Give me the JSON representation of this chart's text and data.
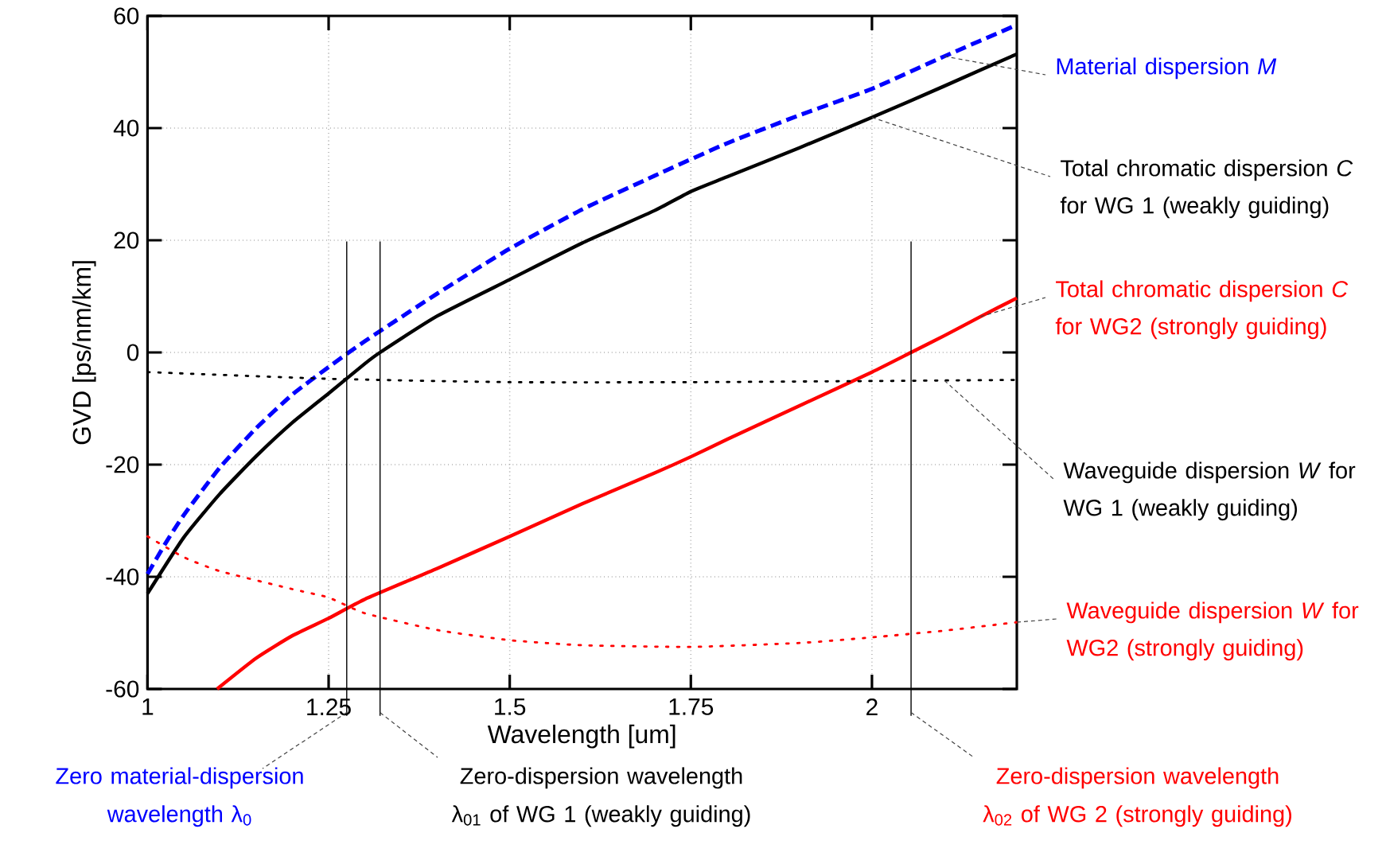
{
  "chart_data": {
    "type": "line",
    "xlabel": "Wavelength [um]",
    "ylabel": "GVD [ps/nm/km]",
    "xlim": [
      1,
      2.2
    ],
    "ylim": [
      -60,
      60
    ],
    "xticks": [
      1,
      1.25,
      1.5,
      1.75,
      2
    ],
    "yticks": [
      -60,
      -40,
      -20,
      0,
      20,
      40,
      60
    ],
    "grid": true,
    "legend": false,
    "series": [
      {
        "name": "Material dispersion *M*",
        "color": "#0000ff",
        "line_style": "dashed",
        "x": [
          1,
          1.025,
          1.05,
          1.1,
          1.15,
          1.2,
          1.25,
          1.3,
          1.4,
          1.5,
          1.6,
          1.7,
          1.8,
          1.9,
          2,
          2.1,
          2.2
        ],
        "values": [
          -39.5,
          -34,
          -29,
          -20.5,
          -13.5,
          -7.5,
          -2.6,
          2,
          10.5,
          18.5,
          25.5,
          31.5,
          37.3,
          42.3,
          47,
          52.8,
          58.4
        ]
      },
      {
        "name": "Total chromatic dispersion *C* for WG 1 (weakly guiding)",
        "color": "#000000",
        "line_style": "solid",
        "x": [
          1,
          1.05,
          1.1,
          1.15,
          1.2,
          1.25,
          1.3,
          1.321,
          1.4,
          1.5,
          1.6,
          1.7,
          1.75,
          1.8,
          1.9,
          2,
          2.1,
          2.2
        ],
        "values": [
          -43,
          -33,
          -25.2,
          -18.5,
          -12.5,
          -7.3,
          -2,
          0,
          6.5,
          13,
          19.5,
          25.3,
          28.7,
          31.3,
          36.5,
          41.9,
          47.5,
          53.2
        ]
      },
      {
        "name": "Total chromatic dispersion *C* for WG2 (strongly guiding)",
        "color": "#ff0000",
        "line_style": "solid",
        "x": [
          1.096,
          1.15,
          1.2,
          1.25,
          1.3,
          1.4,
          1.5,
          1.6,
          1.7,
          1.75,
          1.8,
          1.9,
          2,
          2.054,
          2.1,
          2.15,
          2.2
        ],
        "values": [
          -60,
          -54.5,
          -50.5,
          -47.4,
          -44,
          -38.5,
          -32.8,
          -27,
          -21.5,
          -18.6,
          -15.5,
          -9.5,
          -3.5,
          0,
          3,
          6.4,
          9.7
        ]
      },
      {
        "name": "Waveguide dispersion *W* for WG 1 (weakly guiding)",
        "color": "#000000",
        "line_style": "dotted",
        "x": [
          1,
          1.25,
          1.5,
          1.75,
          2,
          2.1,
          2.2
        ],
        "values": [
          -3.5,
          -4.7,
          -5.3,
          -5.3,
          -5.1,
          -5,
          -4.9
        ]
      },
      {
        "name": "Waveguide dispersion *W* for WG2 (strongly guiding)",
        "color": "#ff0000",
        "line_style": "dotted",
        "x": [
          1,
          1.05,
          1.1,
          1.2,
          1.25,
          1.3,
          1.4,
          1.5,
          1.6,
          1.75,
          1.9,
          2,
          2.1,
          2.2
        ],
        "values": [
          -32.8,
          -36.5,
          -39,
          -42.2,
          -43.7,
          -46.5,
          -49.5,
          -51.3,
          -52.2,
          -52.5,
          -51.8,
          -50.8,
          -49.6,
          -48.1
        ]
      }
    ],
    "ref_lines": [
      {
        "axis": "x",
        "value": 1.275,
        "color": "#000000",
        "line_style": "solid",
        "label": "Zero material-dispersion wavelength λ$_{0}$"
      },
      {
        "axis": "x",
        "value": 1.321,
        "color": "#000000",
        "line_style": "solid",
        "label": "Zero-dispersion wavelength λ$_{01}$ of WG 1 (weakly guiding)"
      },
      {
        "axis": "x",
        "value": 2.054,
        "color": "#000000",
        "line_style": "solid",
        "label": "Zero-dispersion wavelength λ$_{02}$ of WG 2 (strongly guiding)"
      }
    ]
  }
}
